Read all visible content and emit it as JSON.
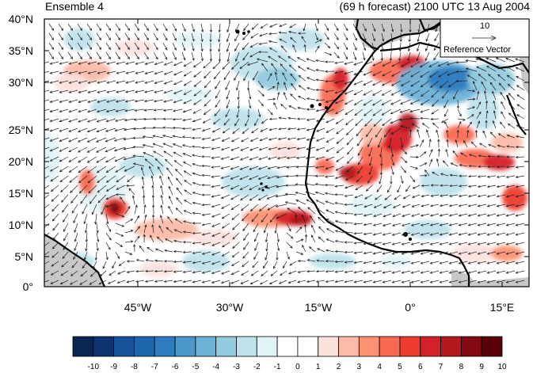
{
  "panel_title": "Ensemble 4",
  "forecast_title": "(69 h forecast) 2100 UTC 13 Aug 2004",
  "reference_vector": {
    "magnitude_label": "10",
    "label": "Reference Vector"
  },
  "lat_labels": [
    "40°N",
    "35°N",
    "30°N",
    "25°N",
    "20°N",
    "15°N",
    "10°N",
    "5°N",
    "0°"
  ],
  "lon_labels": [
    "45°W",
    "30°W",
    "15°W",
    "0°",
    "15°E"
  ],
  "colorbar": {
    "labels": [
      "-10",
      "-9",
      "-8",
      "-7",
      "-6",
      "-5",
      "-4",
      "-3",
      "-2",
      "-1",
      "0",
      "1",
      "2",
      "3",
      "4",
      "5",
      "6",
      "7",
      "8",
      "9",
      "10"
    ],
    "colors": [
      "#0a2551",
      "#0d3470",
      "#15529a",
      "#1d66ad",
      "#2d7cc0",
      "#4c97cc",
      "#6cb1d6",
      "#94cadd",
      "#bfe2ec",
      "#e0f3f8",
      "#ffffff",
      "#ffffff",
      "#fde1dd",
      "#fcbba8",
      "#fc9272",
      "#f96a52",
      "#ed3b2f",
      "#d42028",
      "#b3181d",
      "#830a14",
      "#5a0008"
    ]
  },
  "colors": {
    "land": "#c8c8c8",
    "coast": "#000000",
    "vector": "#222222"
  }
}
